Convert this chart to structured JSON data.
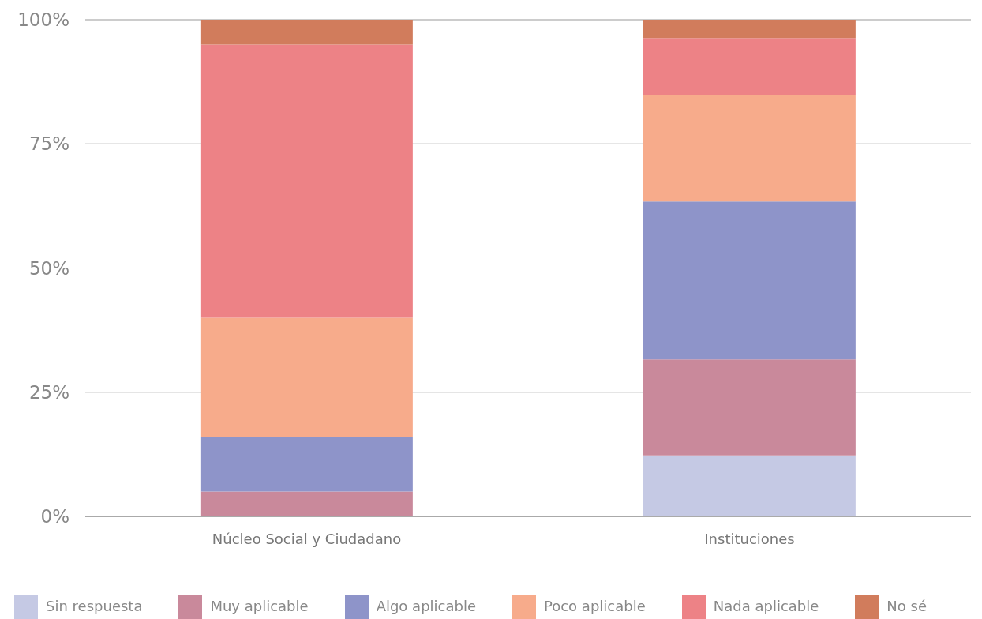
{
  "chart_data": {
    "type": "bar",
    "stacked": true,
    "categories": [
      "Núcleo Social y Ciudadano",
      "Instituciones"
    ],
    "series": [
      {
        "name": "Sin respuesta",
        "color": "#c5c9e4",
        "values": [
          0,
          12.3
        ]
      },
      {
        "name": "Muy aplicable",
        "color": "#c9899b",
        "values": [
          5,
          19.3
        ]
      },
      {
        "name": "Algo aplicable",
        "color": "#8e94c9",
        "values": [
          11,
          31.8
        ]
      },
      {
        "name": "Poco aplicable",
        "color": "#f7ab8b",
        "values": [
          24,
          21.5
        ]
      },
      {
        "name": "Nada aplicable",
        "color": "#ed8286",
        "values": [
          55,
          11.4
        ]
      },
      {
        "name": "No sé",
        "color": "#d17c5c",
        "values": [
          5,
          3.7
        ]
      }
    ],
    "ylim": [
      0,
      100
    ],
    "yticks": [
      {
        "value": 0,
        "label": "0%"
      },
      {
        "value": 25,
        "label": "25%"
      },
      {
        "value": 50,
        "label": "50%"
      },
      {
        "value": 75,
        "label": "75%"
      },
      {
        "value": 100,
        "label": "100%"
      }
    ],
    "grid": "y",
    "legend": "bottom"
  }
}
